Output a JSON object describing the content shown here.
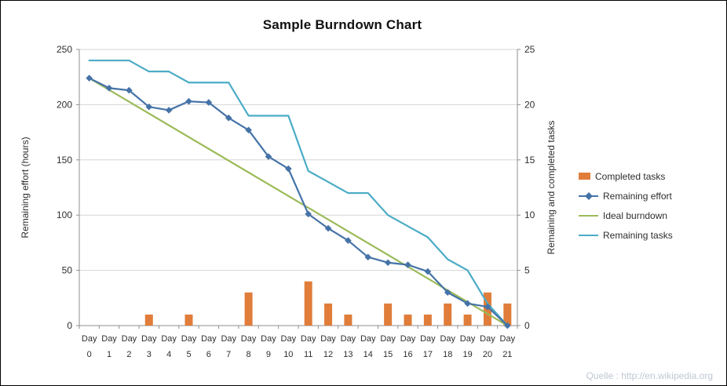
{
  "title": "Sample Burndown Chart",
  "watermark": "Quelle : http://en.wikipedia.org",
  "chart_data": {
    "type": "combo",
    "title": "Sample Burndown Chart",
    "grid": true,
    "legend_position": "right",
    "categories": [
      "Day 0",
      "Day 1",
      "Day 2",
      "Day 3",
      "Day 4",
      "Day 5",
      "Day 6",
      "Day 7",
      "Day 8",
      "Day 9",
      "Day 10",
      "Day 11",
      "Day 12",
      "Day 13",
      "Day 14",
      "Day 15",
      "Day 16",
      "Day 17",
      "Day 18",
      "Day 19",
      "Day 20",
      "Day 21"
    ],
    "left_axis": {
      "label": "Remaining effort (hours)",
      "min": 0,
      "max": 250,
      "ticks": [
        0,
        50,
        100,
        150,
        200,
        250
      ]
    },
    "right_axis": {
      "label": "Remaining and completed tasks",
      "min": 0,
      "max": 25,
      "ticks": [
        0,
        5,
        10,
        15,
        20,
        25
      ]
    },
    "colors": {
      "grid": "#d6d6d6",
      "axis": "#8f8f8f",
      "tick_text": "#2e2e2e"
    },
    "series": [
      {
        "name": "Completed tasks",
        "type": "bar",
        "axis": "right",
        "color": "#e07d3a",
        "values": [
          null,
          null,
          null,
          1,
          null,
          1,
          null,
          null,
          3,
          null,
          null,
          4,
          2,
          1,
          null,
          2,
          1,
          1,
          2,
          1,
          3,
          2
        ]
      },
      {
        "name": "Remaining effort",
        "type": "line",
        "axis": "left",
        "color": "#4573a7",
        "marker": "diamond",
        "values": [
          224,
          215,
          213,
          198,
          195,
          203,
          202,
          188,
          177,
          153,
          142,
          101,
          88,
          77,
          62,
          57,
          55,
          49,
          30,
          20,
          17,
          0
        ]
      },
      {
        "name": "Ideal burndown",
        "type": "line",
        "axis": "left",
        "color": "#9bbb59",
        "values": [
          224,
          null,
          null,
          null,
          null,
          null,
          null,
          null,
          null,
          null,
          null,
          null,
          null,
          null,
          null,
          null,
          null,
          null,
          null,
          null,
          null,
          0
        ]
      },
      {
        "name": "Remaining tasks",
        "type": "line",
        "axis": "right",
        "color": "#4bacc6",
        "values": [
          24,
          24,
          24,
          23,
          23,
          22,
          22,
          22,
          19,
          19,
          19,
          14,
          13,
          12,
          12,
          10,
          9,
          8,
          6,
          5,
          2,
          0
        ]
      }
    ]
  }
}
